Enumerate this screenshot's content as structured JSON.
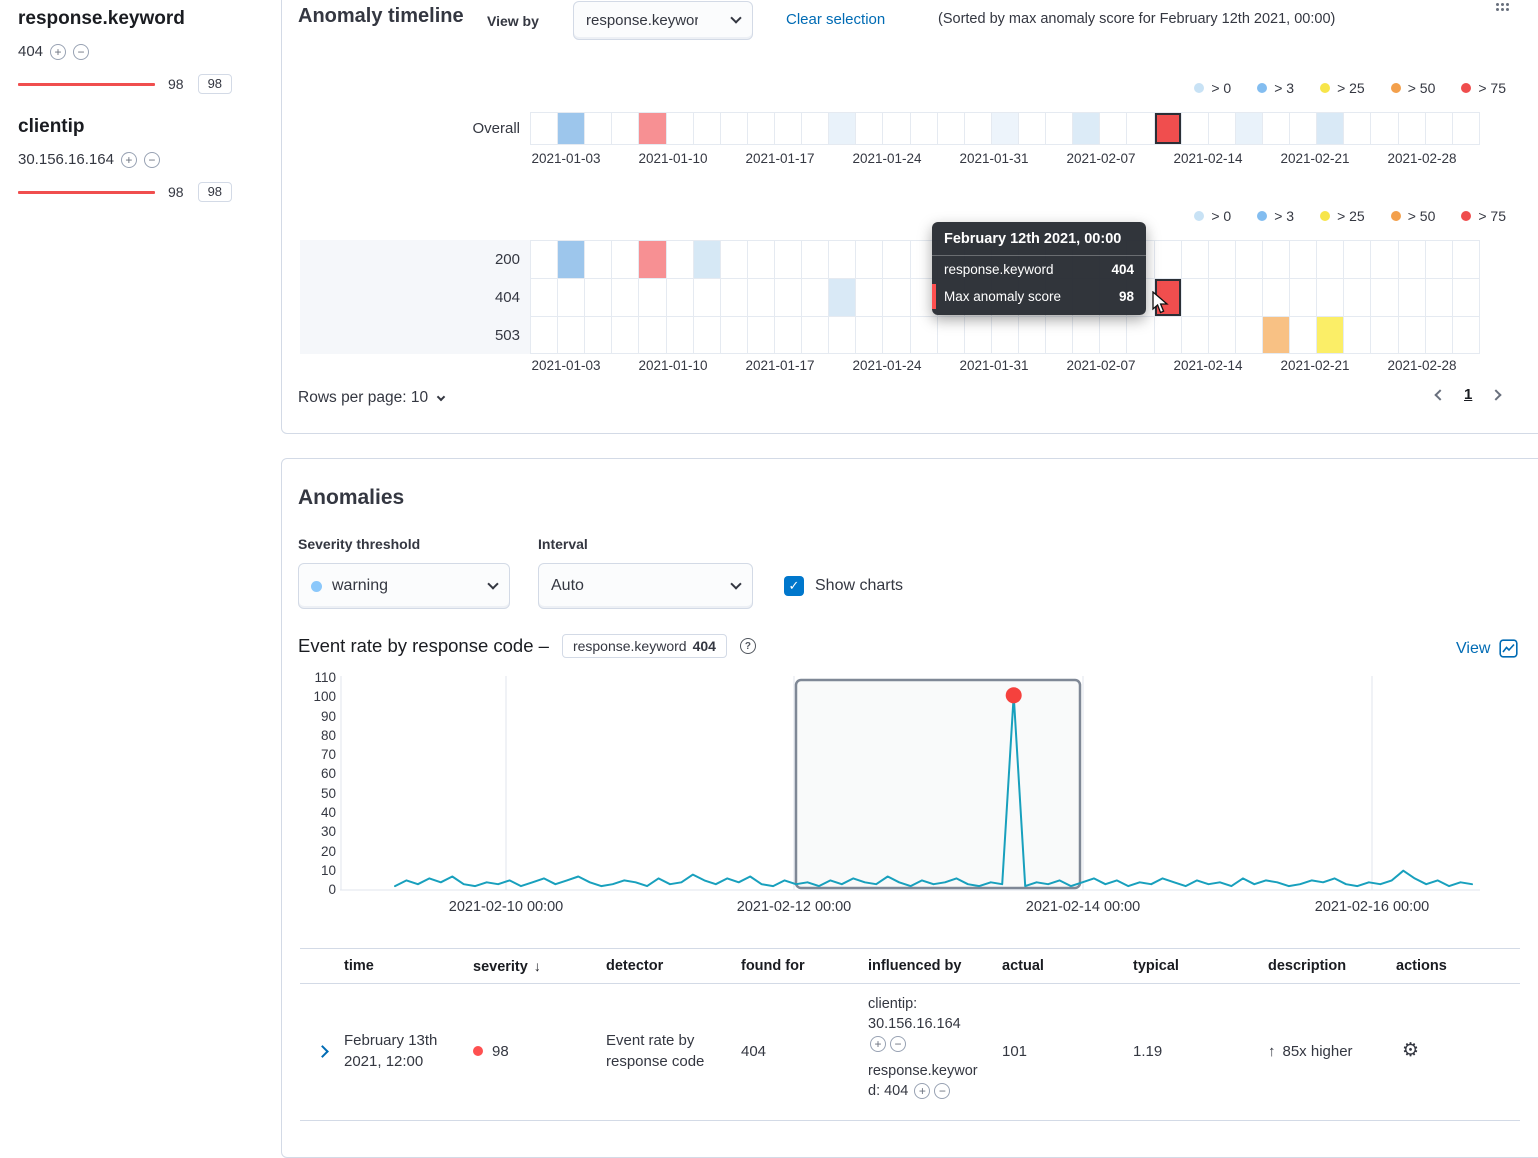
{
  "icons": {
    "plus": "+",
    "minus": "−",
    "gear": "⚙",
    "check": "✓",
    "sort_desc": "↓",
    "arrow_up": "↑",
    "info": "?"
  },
  "colors": {
    "critical": "#fe5050",
    "bar_red": "#f04e4e",
    "accent_blue": "#006bb4",
    "checkbox_blue": "#0077cc"
  },
  "influencers": {
    "groups": [
      {
        "title": "response.keyword",
        "items": [
          {
            "label": "404",
            "max_score": "98",
            "badge": "98"
          }
        ]
      },
      {
        "title": "clientip",
        "items": [
          {
            "label": "30.156.16.164",
            "max_score": "98",
            "badge": "98"
          }
        ]
      }
    ]
  },
  "timeline": {
    "title": "Anomaly timeline",
    "view_by_label": "View by",
    "view_by_value": "response.keyword",
    "clear_selection_label": "Clear selection",
    "sorted_note": "(Sorted by max anomaly score for February 12th 2021, 00:00)",
    "legend": [
      {
        "label": "> 0",
        "color": "#c8e2f5"
      },
      {
        "label": "> 3",
        "color": "#83bdf0"
      },
      {
        "label": "> 25",
        "color": "#f7e54a"
      },
      {
        "label": "> 50",
        "color": "#f3a04c"
      },
      {
        "label": "> 75",
        "color": "#ef4d4d"
      }
    ],
    "cells_per_lane": 35,
    "axis_dates": [
      "2021-01-03",
      "2021-01-10",
      "2021-01-17",
      "2021-01-24",
      "2021-01-31",
      "2021-02-07",
      "2021-02-14",
      "2021-02-21",
      "2021-02-28"
    ],
    "overall_lane": {
      "label": "Overall",
      "cells": [
        {
          "i": 1,
          "c": "#9dc6ec"
        },
        {
          "i": 4,
          "c": "#f79093"
        },
        {
          "i": 11,
          "c": "#e9f2fa"
        },
        {
          "i": 17,
          "c": "#edf4fb"
        },
        {
          "i": 20,
          "c": "#dcebf7"
        },
        {
          "i": 23,
          "c": "#f04e4e",
          "selected": true
        },
        {
          "i": 26,
          "c": "#e9f2fa"
        },
        {
          "i": 29,
          "c": "#d9e9f6"
        }
      ]
    },
    "view_lanes": [
      {
        "label": "200",
        "cells": [
          {
            "i": 1,
            "c": "#9dc6ec"
          },
          {
            "i": 4,
            "c": "#f79093"
          },
          {
            "i": 6,
            "c": "#d6e8f5"
          }
        ]
      },
      {
        "label": "404",
        "cells": [
          {
            "i": 11,
            "c": "#d9e9f6"
          },
          {
            "i": 23,
            "c": "#f04e4e",
            "selected": true
          }
        ]
      },
      {
        "label": "503",
        "cells": [
          {
            "i": 27,
            "c": "#f8c184"
          },
          {
            "i": 29,
            "c": "#fbee67"
          }
        ]
      }
    ],
    "tooltip": {
      "title": "February 12th 2021, 00:00",
      "rows": [
        {
          "label": "response.keyword",
          "value": "404"
        },
        {
          "label": "Max anomaly score",
          "value": "98"
        }
      ]
    },
    "rows_per_page_label": "Rows per page: 10",
    "page_number": "1"
  },
  "anomalies": {
    "title": "Anomalies",
    "severity_label": "Severity threshold",
    "severity_value": "warning",
    "severity_dot_color": "#8bc8fb",
    "interval_label": "Interval",
    "interval_value": "Auto",
    "show_charts_label": "Show charts",
    "chart_heading": "Event rate by response code –",
    "chart_badge_field": "response.keyword",
    "chart_badge_value": "404",
    "view_label": "View"
  },
  "chart_data": {
    "type": "line",
    "title": "Event rate by response code",
    "series": "response.keyword 404",
    "ylim": [
      0,
      110
    ],
    "yticks": [
      110,
      100,
      90,
      80,
      70,
      60,
      50,
      40,
      30,
      20,
      10,
      0
    ],
    "xticks": [
      "2021-02-10 00:00",
      "2021-02-12 00:00",
      "2021-02-14 00:00",
      "2021-02-16 00:00"
    ],
    "line_color": "#18a0bd",
    "anomaly_marker": {
      "index": 54,
      "value": 101,
      "color": "#f5413d",
      "time": "February 13th 2021, 12:00"
    },
    "selection_range": [
      "2021-02-12 00:00",
      "2021-02-14 00:00"
    ],
    "values": [
      2,
      5,
      3,
      6,
      4,
      7,
      3,
      2,
      4,
      3,
      5,
      2,
      4,
      6,
      3,
      5,
      7,
      4,
      2,
      3,
      5,
      4,
      2,
      6,
      3,
      4,
      8,
      5,
      3,
      6,
      4,
      7,
      3,
      2,
      5,
      3,
      4,
      2,
      5,
      3,
      6,
      4,
      3,
      7,
      4,
      2,
      5,
      3,
      4,
      6,
      3,
      2,
      4,
      3,
      101,
      2,
      4,
      3,
      5,
      2,
      4,
      6,
      3,
      5,
      2,
      4,
      3,
      6,
      4,
      2,
      5,
      3,
      4,
      2,
      6,
      3,
      5,
      4,
      2,
      3,
      5,
      4,
      6,
      3,
      2,
      4,
      3,
      5,
      10,
      6,
      3,
      5,
      2,
      4,
      3
    ]
  },
  "table": {
    "columns": [
      {
        "key": "time",
        "label": "time"
      },
      {
        "key": "severity",
        "label": "severity",
        "sorted": true
      },
      {
        "key": "detector",
        "label": "detector"
      },
      {
        "key": "found-for",
        "label": "found for"
      },
      {
        "key": "influenced-by",
        "label": "influenced by"
      },
      {
        "key": "actual",
        "label": "actual"
      },
      {
        "key": "typical",
        "label": "typical"
      },
      {
        "key": "description",
        "label": "description"
      },
      {
        "key": "actions",
        "label": "actions"
      }
    ],
    "row": {
      "time": "February 13th 2021, 12:00",
      "severity": "98",
      "detector": "Event rate by response code",
      "found_for": "404",
      "influenced_by": [
        "clientip: 30.156.16.164",
        "response.keyword: 404"
      ],
      "actual": "101",
      "typical": "1.19",
      "description": "85x higher"
    }
  }
}
